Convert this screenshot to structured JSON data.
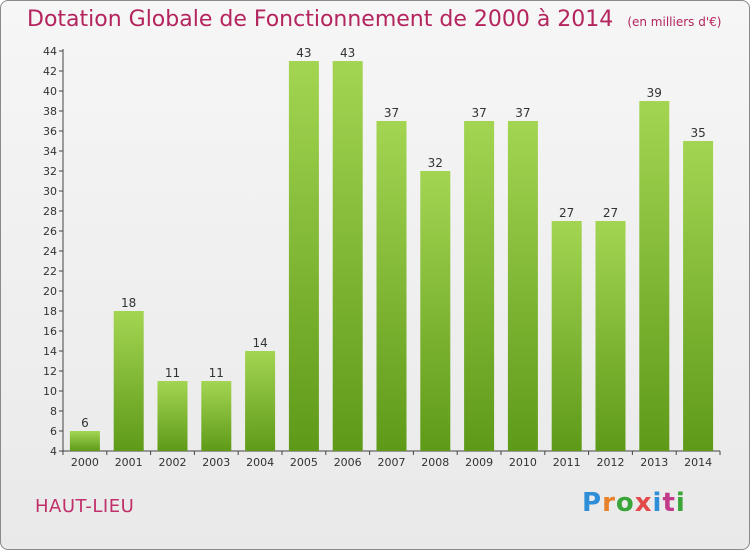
{
  "header": {
    "title": "Dotation Globale de Fonctionnement de 2000 à 2014",
    "unit": "(en milliers d'€)"
  },
  "place": "HAUT-LIEU",
  "logo": {
    "text": "Proxiti",
    "colors": [
      "#2e8fd8",
      "#e8812a",
      "#3aa63a",
      "#e24a4a",
      "#2e8fd8",
      "#c43a8a",
      "#3aa63a"
    ]
  },
  "colors": {
    "bar_light": "#a3d552",
    "bar_dark": "#5e9a18",
    "axis": "#444444",
    "grid": "#c8c8c8"
  },
  "chart_data": {
    "type": "bar",
    "categories": [
      "2000",
      "2001",
      "2002",
      "2003",
      "2004",
      "2005",
      "2006",
      "2007",
      "2008",
      "2009",
      "2010",
      "2011",
      "2012",
      "2013",
      "2014"
    ],
    "values": [
      6,
      18,
      11,
      11,
      14,
      43,
      43,
      37,
      32,
      37,
      37,
      27,
      27,
      39,
      35
    ],
    "ylim": [
      4,
      44
    ],
    "yticks": [
      4,
      6,
      8,
      10,
      12,
      14,
      16,
      18,
      20,
      22,
      24,
      26,
      28,
      30,
      32,
      34,
      36,
      38,
      40,
      42,
      44
    ],
    "data_labels": true,
    "grid": false
  }
}
